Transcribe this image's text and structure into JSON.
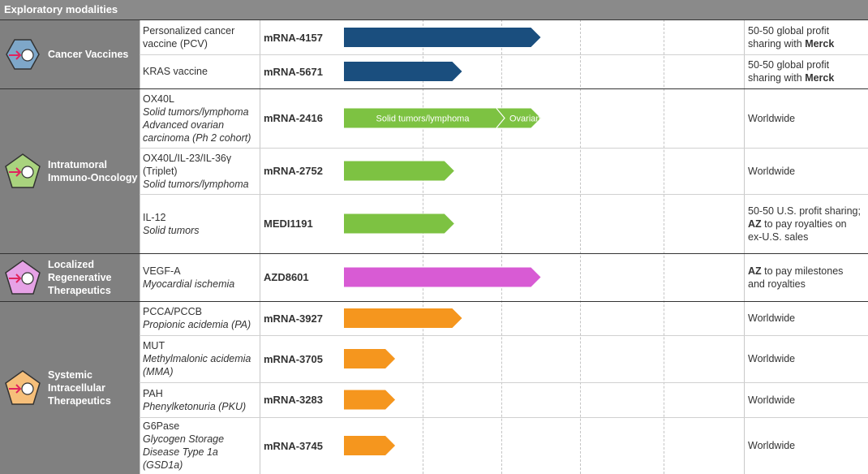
{
  "header": {
    "title": "Exploratory modalities"
  },
  "colors": {
    "cancer_vaccines": "#1a4e7e",
    "intratumoral": "#7dc242",
    "regenerative": "#d85bd4",
    "intracellular": "#f5961e",
    "modality_bg": "#808080",
    "header_bg": "#8a8a8a"
  },
  "modalities": [
    {
      "label": "Cancer Vaccines",
      "icon": "cancer-vaccines-icon"
    },
    {
      "label": "Intratumoral Immuno-Oncology",
      "icon": "intratumoral-icon"
    },
    {
      "label": "Localized Regenerative Therapeutics",
      "icon": "regenerative-icon"
    },
    {
      "label": "Systemic Intracellular Therapeutics",
      "icon": "intracellular-icon"
    }
  ],
  "chart_data": {
    "type": "bar",
    "value_meaning": "development stage reached (1 stage = 1 grid column)",
    "xlim": [
      0,
      5
    ],
    "rows": [
      {
        "modality": 0,
        "target": "Personalized cancer vaccine (PCV)",
        "indication": "",
        "code": "mRNA-4157",
        "stage": 2.5,
        "color": "#1a4e7e",
        "partner": "50-50 global profit sharing with ",
        "partner_bold": "Merck"
      },
      {
        "modality": 0,
        "target": "KRAS vaccine",
        "indication": "",
        "code": "mRNA-5671",
        "stage": 1.5,
        "color": "#1a4e7e",
        "partner": "50-50 global profit sharing with ",
        "partner_bold": "Merck"
      },
      {
        "modality": 1,
        "target": "OX40L",
        "indication": "Solid tumors/lymphoma Advanced ovarian carcinoma (Ph 2 cohort)",
        "code": "mRNA-2416",
        "stage": 2.5,
        "color": "#7dc242",
        "segments": [
          {
            "label": "Solid tumors/lymphoma",
            "stage": 2.0
          },
          {
            "label": "Ovarian",
            "stage": 2.5
          }
        ],
        "partner": "Worldwide",
        "partner_bold": ""
      },
      {
        "modality": 1,
        "target": "OX40L/IL-23/IL-36γ (Triplet)",
        "indication": "Solid tumors/lymphoma",
        "code": "mRNA-2752",
        "stage": 1.4,
        "color": "#7dc242",
        "partner": "Worldwide",
        "partner_bold": ""
      },
      {
        "modality": 1,
        "target": "IL-12",
        "indication": "Solid tumors",
        "code": "MEDI1191",
        "stage": 1.4,
        "color": "#7dc242",
        "partner": "50-50 U.S. profit sharing; ",
        "partner_bold": "AZ",
        "partner_tail": " to pay royalties on ex-U.S. sales"
      },
      {
        "modality": 2,
        "target": "VEGF-A",
        "indication": "Myocardial ischemia",
        "code": "AZD8601",
        "stage": 2.5,
        "color": "#d85bd4",
        "partner": "",
        "partner_bold": "AZ",
        "partner_tail": " to pay milestones and royalties"
      },
      {
        "modality": 3,
        "target": "PCCA/PCCB",
        "indication": "Propionic acidemia (PA)",
        "code": "mRNA-3927",
        "stage": 1.5,
        "color": "#f5961e",
        "partner": "Worldwide",
        "partner_bold": ""
      },
      {
        "modality": 3,
        "target": "MUT",
        "indication": "Methylmalonic acidemia (MMA)",
        "code": "mRNA-3705",
        "stage": 0.65,
        "color": "#f5961e",
        "partner": "Worldwide",
        "partner_bold": ""
      },
      {
        "modality": 3,
        "target": "PAH",
        "indication": "Phenylketonuria (PKU)",
        "code": "mRNA-3283",
        "stage": 0.65,
        "color": "#f5961e",
        "partner": "Worldwide",
        "partner_bold": ""
      },
      {
        "modality": 3,
        "target": "G6Pase",
        "indication": "Glycogen Storage Disease Type 1a (GSD1a)",
        "code": "mRNA-3745",
        "stage": 0.65,
        "color": "#f5961e",
        "partner": "Worldwide",
        "partner_bold": ""
      }
    ]
  }
}
